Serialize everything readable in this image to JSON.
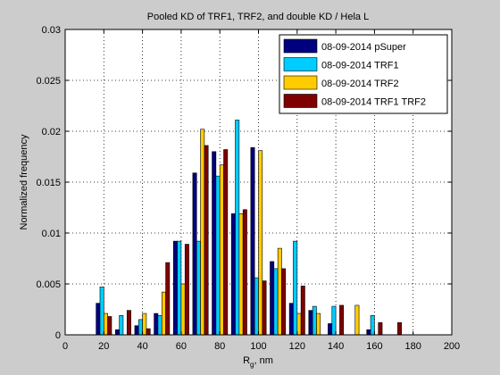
{
  "chart_data": {
    "type": "bar",
    "title": "Pooled KD of TRF1, TRF2, and double KD / Hela L",
    "xlabel": "R",
    "xlabel_sub": "g",
    "xlabel_suffix": ", nm",
    "ylabel": "Normalized frequency",
    "xlim": [
      0,
      200
    ],
    "ylim": [
      0,
      0.03
    ],
    "xticks": [
      0,
      20,
      40,
      60,
      80,
      100,
      120,
      140,
      160,
      180,
      200
    ],
    "yticks": [
      0,
      0.005,
      0.01,
      0.015,
      0.02,
      0.025,
      0.03
    ],
    "ytick_labels": [
      "0",
      "0.005",
      "0.01",
      "0.015",
      "0.02",
      "0.025",
      "0.03"
    ],
    "grid": true,
    "legend_position": "top-right",
    "bin_centers": [
      20,
      30,
      40,
      50,
      60,
      70,
      80,
      90,
      100,
      110,
      120,
      130,
      140,
      150,
      160,
      170
    ],
    "series": [
      {
        "name": "08-09-2014 pSuper",
        "color": "#00007f",
        "values": [
          0.0031,
          0.0005,
          0.0009,
          0.0021,
          0.0092,
          0.0159,
          0.018,
          0.0119,
          0.0184,
          0.0072,
          0.0031,
          0.0024,
          0.0011,
          0.0,
          0.0005,
          0.0
        ]
      },
      {
        "name": "08-09-2014 TRF1",
        "color": "#00ccff",
        "values": [
          0.0047,
          0.0019,
          0.0015,
          0.0019,
          0.0092,
          0.0092,
          0.0156,
          0.0211,
          0.0056,
          0.0065,
          0.0092,
          0.0028,
          0.0028,
          0.0,
          0.0019,
          0.0
        ]
      },
      {
        "name": "08-09-2014 TRF2",
        "color": "#ffcc00",
        "values": [
          0.0021,
          0.0,
          0.0021,
          0.0042,
          0.005,
          0.0202,
          0.0167,
          0.0119,
          0.0181,
          0.0085,
          0.0021,
          0.0021,
          0.0,
          0.0029,
          0.0,
          0.0
        ]
      },
      {
        "name": "08-09-2014 TRF1 TRF2",
        "color": "#7f0000",
        "values": [
          0.0018,
          0.0024,
          0.0006,
          0.0071,
          0.0089,
          0.0186,
          0.0182,
          0.0123,
          0.0053,
          0.0065,
          0.0048,
          0.0,
          0.0029,
          0.0,
          0.0012,
          0.0012
        ]
      }
    ]
  }
}
